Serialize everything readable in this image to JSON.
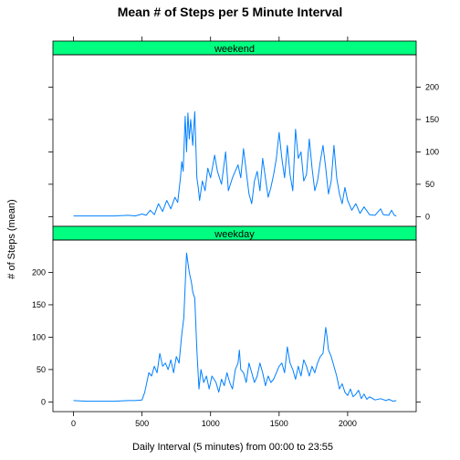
{
  "chart_data": {
    "type": "line",
    "title": "Mean # of Steps per 5 Minute Interval",
    "xlabel": "Daily Interval (5 minutes) from 00:00 to 23:55",
    "ylabel": "# of Steps (mean)",
    "xlim": [
      -150,
      2500
    ],
    "ylim": [
      -15,
      250
    ],
    "x_ticks": [
      0,
      500,
      1000,
      1500,
      2000
    ],
    "y_ticks": [
      0,
      50,
      100,
      150,
      200
    ],
    "line_color": "#0080ff",
    "strip_color": "#00ff80",
    "panels": [
      {
        "name": "weekend",
        "y_axis_side": "right",
        "points": [
          [
            0,
            1
          ],
          [
            100,
            1
          ],
          [
            200,
            1
          ],
          [
            300,
            1
          ],
          [
            400,
            2
          ],
          [
            450,
            1
          ],
          [
            500,
            4
          ],
          [
            530,
            2
          ],
          [
            560,
            10
          ],
          [
            590,
            3
          ],
          [
            620,
            20
          ],
          [
            650,
            8
          ],
          [
            680,
            25
          ],
          [
            710,
            12
          ],
          [
            740,
            30
          ],
          [
            760,
            22
          ],
          [
            780,
            60
          ],
          [
            790,
            85
          ],
          [
            800,
            70
          ],
          [
            815,
            155
          ],
          [
            825,
            100
          ],
          [
            835,
            160
          ],
          [
            845,
            120
          ],
          [
            855,
            150
          ],
          [
            870,
            110
          ],
          [
            885,
            162
          ],
          [
            900,
            60
          ],
          [
            910,
            45
          ],
          [
            920,
            25
          ],
          [
            940,
            55
          ],
          [
            960,
            40
          ],
          [
            980,
            75
          ],
          [
            1000,
            60
          ],
          [
            1030,
            95
          ],
          [
            1050,
            70
          ],
          [
            1080,
            50
          ],
          [
            1110,
            100
          ],
          [
            1130,
            40
          ],
          [
            1160,
            60
          ],
          [
            1200,
            80
          ],
          [
            1220,
            60
          ],
          [
            1240,
            105
          ],
          [
            1260,
            70
          ],
          [
            1280,
            35
          ],
          [
            1300,
            20
          ],
          [
            1320,
            55
          ],
          [
            1340,
            70
          ],
          [
            1360,
            40
          ],
          [
            1380,
            90
          ],
          [
            1400,
            60
          ],
          [
            1420,
            30
          ],
          [
            1440,
            45
          ],
          [
            1460,
            65
          ],
          [
            1480,
            90
          ],
          [
            1500,
            130
          ],
          [
            1520,
            90
          ],
          [
            1540,
            60
          ],
          [
            1560,
            110
          ],
          [
            1580,
            65
          ],
          [
            1600,
            40
          ],
          [
            1620,
            135
          ],
          [
            1640,
            90
          ],
          [
            1660,
            100
          ],
          [
            1680,
            55
          ],
          [
            1700,
            65
          ],
          [
            1720,
            120
          ],
          [
            1740,
            75
          ],
          [
            1760,
            40
          ],
          [
            1780,
            55
          ],
          [
            1800,
            85
          ],
          [
            1820,
            110
          ],
          [
            1840,
            75
          ],
          [
            1860,
            35
          ],
          [
            1880,
            55
          ],
          [
            1900,
            110
          ],
          [
            1920,
            60
          ],
          [
            1940,
            35
          ],
          [
            1960,
            20
          ],
          [
            1980,
            45
          ],
          [
            2000,
            25
          ],
          [
            2030,
            10
          ],
          [
            2060,
            20
          ],
          [
            2090,
            5
          ],
          [
            2120,
            15
          ],
          [
            2160,
            3
          ],
          [
            2200,
            2
          ],
          [
            2240,
            12
          ],
          [
            2260,
            3
          ],
          [
            2300,
            2
          ],
          [
            2320,
            10
          ],
          [
            2340,
            2
          ],
          [
            2355,
            1
          ]
        ]
      },
      {
        "name": "weekday",
        "y_axis_side": "left",
        "points": [
          [
            0,
            2
          ],
          [
            100,
            1
          ],
          [
            200,
            1
          ],
          [
            300,
            1
          ],
          [
            400,
            2
          ],
          [
            450,
            2
          ],
          [
            500,
            3
          ],
          [
            520,
            15
          ],
          [
            550,
            45
          ],
          [
            570,
            40
          ],
          [
            590,
            55
          ],
          [
            610,
            45
          ],
          [
            630,
            75
          ],
          [
            650,
            55
          ],
          [
            670,
            60
          ],
          [
            690,
            50
          ],
          [
            710,
            65
          ],
          [
            730,
            45
          ],
          [
            750,
            70
          ],
          [
            770,
            60
          ],
          [
            790,
            105
          ],
          [
            805,
            130
          ],
          [
            815,
            180
          ],
          [
            825,
            230
          ],
          [
            835,
            215
          ],
          [
            845,
            200
          ],
          [
            860,
            185
          ],
          [
            870,
            170
          ],
          [
            885,
            160
          ],
          [
            900,
            80
          ],
          [
            915,
            20
          ],
          [
            930,
            50
          ],
          [
            950,
            30
          ],
          [
            970,
            40
          ],
          [
            990,
            20
          ],
          [
            1010,
            40
          ],
          [
            1040,
            30
          ],
          [
            1060,
            15
          ],
          [
            1080,
            35
          ],
          [
            1100,
            25
          ],
          [
            1120,
            45
          ],
          [
            1140,
            30
          ],
          [
            1160,
            20
          ],
          [
            1180,
            50
          ],
          [
            1200,
            60
          ],
          [
            1210,
            80
          ],
          [
            1220,
            50
          ],
          [
            1240,
            45
          ],
          [
            1260,
            30
          ],
          [
            1280,
            60
          ],
          [
            1300,
            45
          ],
          [
            1320,
            30
          ],
          [
            1340,
            40
          ],
          [
            1360,
            60
          ],
          [
            1380,
            45
          ],
          [
            1400,
            25
          ],
          [
            1420,
            40
          ],
          [
            1440,
            30
          ],
          [
            1460,
            35
          ],
          [
            1480,
            45
          ],
          [
            1500,
            55
          ],
          [
            1520,
            60
          ],
          [
            1540,
            45
          ],
          [
            1560,
            85
          ],
          [
            1580,
            60
          ],
          [
            1600,
            50
          ],
          [
            1620,
            35
          ],
          [
            1640,
            55
          ],
          [
            1660,
            40
          ],
          [
            1680,
            65
          ],
          [
            1700,
            55
          ],
          [
            1720,
            40
          ],
          [
            1740,
            55
          ],
          [
            1760,
            45
          ],
          [
            1780,
            60
          ],
          [
            1800,
            70
          ],
          [
            1820,
            75
          ],
          [
            1840,
            115
          ],
          [
            1850,
            100
          ],
          [
            1860,
            80
          ],
          [
            1880,
            70
          ],
          [
            1900,
            55
          ],
          [
            1920,
            40
          ],
          [
            1940,
            20
          ],
          [
            1960,
            28
          ],
          [
            1980,
            15
          ],
          [
            2000,
            10
          ],
          [
            2020,
            20
          ],
          [
            2040,
            8
          ],
          [
            2060,
            12
          ],
          [
            2080,
            18
          ],
          [
            2100,
            5
          ],
          [
            2120,
            12
          ],
          [
            2140,
            4
          ],
          [
            2160,
            8
          ],
          [
            2200,
            3
          ],
          [
            2240,
            5
          ],
          [
            2280,
            2
          ],
          [
            2300,
            4
          ],
          [
            2330,
            1
          ],
          [
            2355,
            2
          ]
        ]
      }
    ]
  }
}
